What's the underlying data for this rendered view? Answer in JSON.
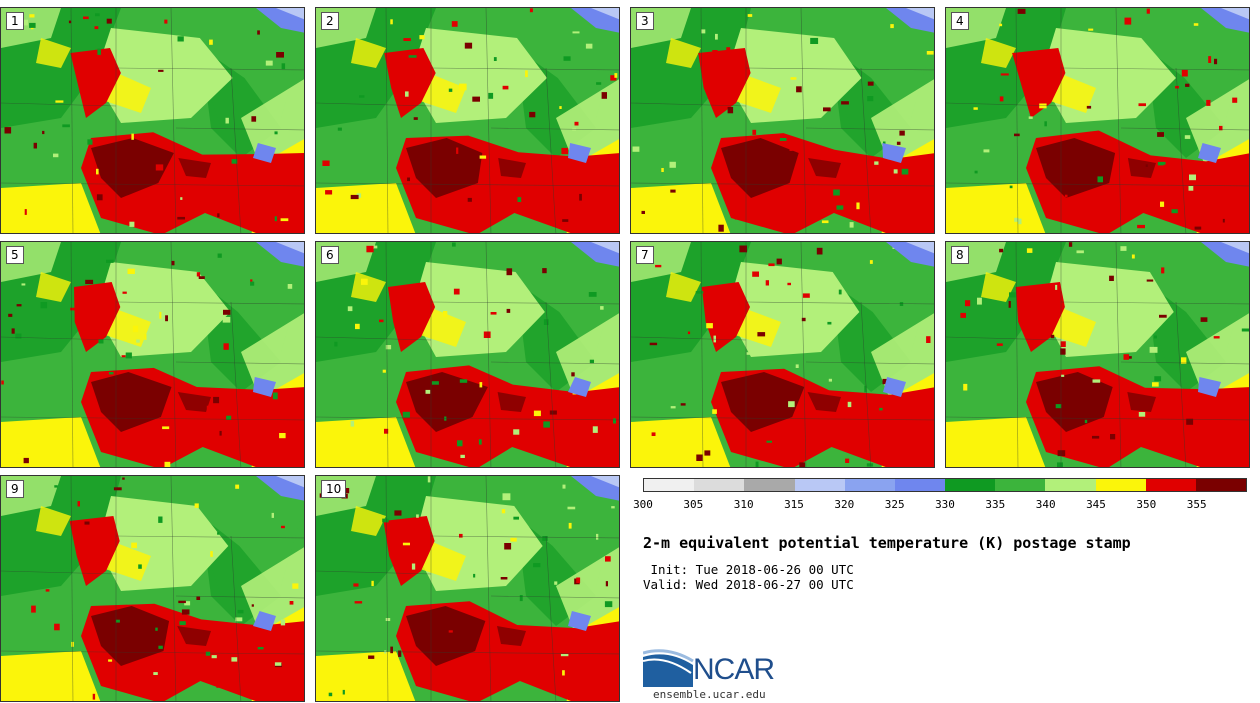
{
  "stamps": [
    {
      "label": "1"
    },
    {
      "label": "2"
    },
    {
      "label": "3"
    },
    {
      "label": "4"
    },
    {
      "label": "5"
    },
    {
      "label": "6"
    },
    {
      "label": "7"
    },
    {
      "label": "8"
    },
    {
      "label": "9"
    },
    {
      "label": "10"
    }
  ],
  "colorbar": {
    "colors": [
      "#f0f0f0",
      "#dcdcdc",
      "#a9a9a9",
      "#b9c8f5",
      "#8aa3f0",
      "#6f86ee",
      "#0f9a22",
      "#3cb43c",
      "#b2f07a",
      "#fbf50a",
      "#e00000",
      "#7a0000"
    ],
    "ticks": [
      "300",
      "305",
      "310",
      "315",
      "320",
      "325",
      "330",
      "335",
      "340",
      "345",
      "350",
      "355"
    ]
  },
  "title": "2-m equivalent potential temperature (K) postage stamp",
  "init": " Init: Tue 2018-06-26 00 UTC",
  "valid": "Valid: Wed 2018-06-27 00 UTC",
  "logo": {
    "text": "NCAR",
    "site": "ensemble.ucar.edu"
  }
}
